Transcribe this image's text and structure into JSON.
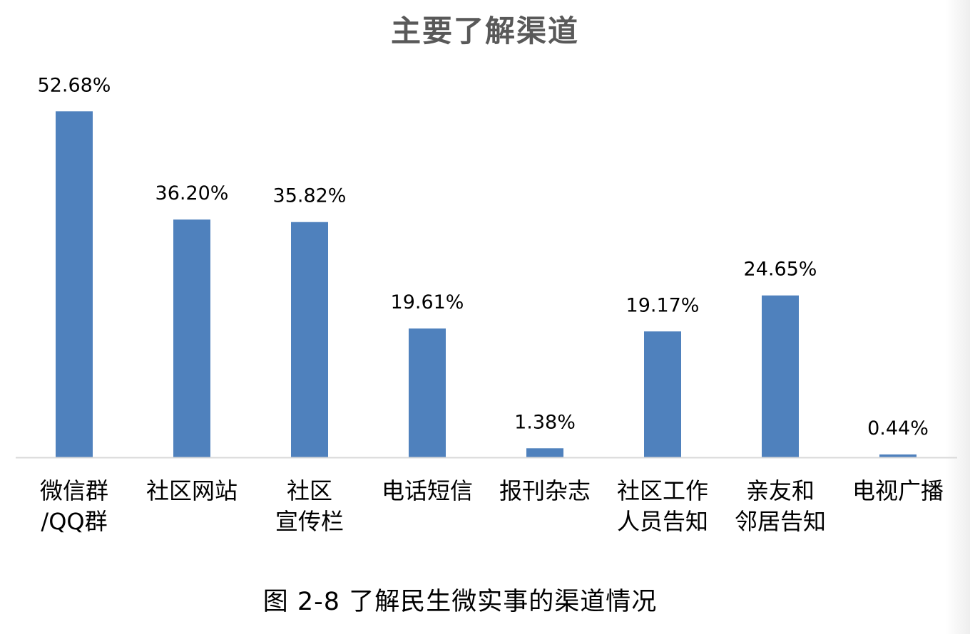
{
  "caption": "图 2-8  了解民生微实事的渠道情况",
  "colors": {
    "bar": "#4f81bd",
    "axis": "#d9d9d9",
    "title": "#595959"
  },
  "chart_data": {
    "type": "bar",
    "title": "主要了解渠道",
    "xlabel": "",
    "ylabel": "",
    "ylim": [
      0,
      60
    ],
    "grid": false,
    "legend": "none",
    "categories": [
      [
        "微信群",
        "/QQ群"
      ],
      [
        "社区网站"
      ],
      [
        "社区",
        "宣传栏"
      ],
      [
        "电话短信"
      ],
      [
        "报刊杂志"
      ],
      [
        "社区工作",
        "人员告知"
      ],
      [
        "亲友和",
        "邻居告知"
      ],
      [
        "电视广播"
      ]
    ],
    "values": [
      52.68,
      36.2,
      35.82,
      19.61,
      1.38,
      19.17,
      24.65,
      0.44
    ],
    "data_labels": [
      "52.68%",
      "36.20%",
      "35.82%",
      "19.61%",
      "1.38%",
      "19.17%",
      "24.65%",
      "0.44%"
    ]
  }
}
